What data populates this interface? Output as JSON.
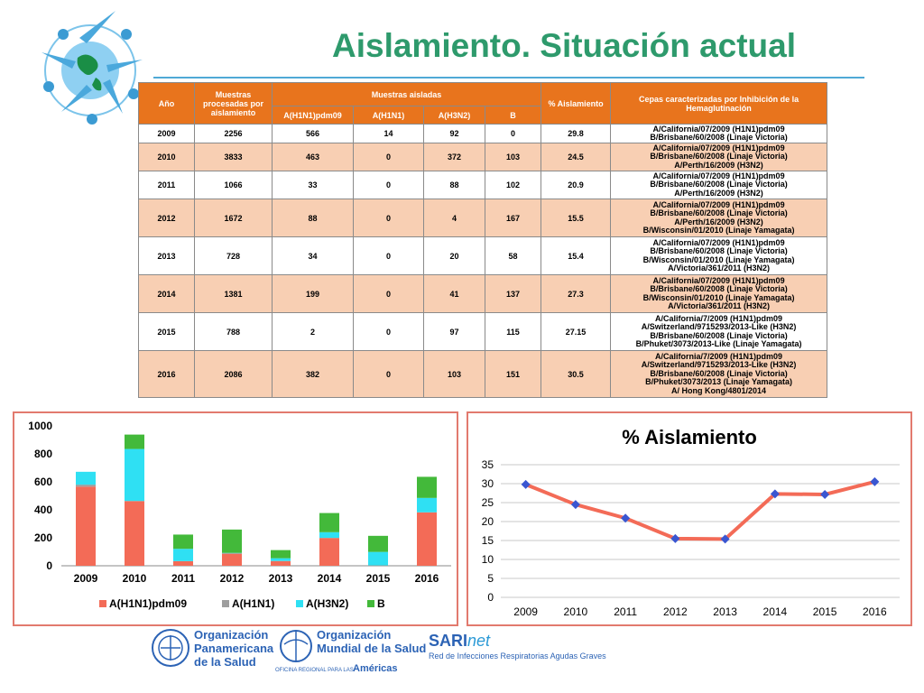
{
  "title": "Aislamiento. Situación actual",
  "colors": {
    "title": "#2e9a6c",
    "header": "#e8741d",
    "row_alt": "#f8cfb3",
    "series_h1n1pdm09": "#f36b57",
    "series_h1n1": "#9e9e9e",
    "series_h3n2": "#2fe0f3",
    "series_b": "#43b93a",
    "line": "#f36b57",
    "marker": "#3a56d1"
  },
  "table": {
    "headers": {
      "anio": "Año",
      "procesadas": "Muestras procesadas por aislamiento",
      "aisladas": "Muestras aisladas",
      "pct": "% Aislamiento",
      "cepas": "Cepas caracterizadas por Inhibición de la Hemaglutinación",
      "sub": [
        "A(H1N1)pdm09",
        "A(H1N1)",
        "A(H3N2)",
        "B"
      ]
    },
    "rows": [
      {
        "year": "2009",
        "processed": "2256",
        "h1n1pdm": "566",
        "h1n1": "14",
        "h3n2": "92",
        "b": "0",
        "pct": "29.8",
        "strains": [
          "A/California/07/2009 (H1N1)pdm09",
          "B/Brisbane/60/2008 (Linaje Victoria)"
        ]
      },
      {
        "year": "2010",
        "processed": "3833",
        "h1n1pdm": "463",
        "h1n1": "0",
        "h3n2": "372",
        "b": "103",
        "pct": "24.5",
        "strains": [
          "A/California/07/2009  (H1N1)pdm09",
          "B/Brisbane/60/2008  (Linaje Victoria)",
          "A/Perth/16/2009 (H3N2)"
        ]
      },
      {
        "year": "2011",
        "processed": "1066",
        "h1n1pdm": "33",
        "h1n1": "0",
        "h3n2": "88",
        "b": "102",
        "pct": "20.9",
        "strains": [
          "A/California/07/2009  (H1N1)pdm09",
          "B/Brisbane/60/2008  (Linaje Victoria)",
          "A/Perth/16/2009 (H3N2)"
        ]
      },
      {
        "year": "2012",
        "processed": "1672",
        "h1n1pdm": "88",
        "h1n1": "0",
        "h3n2": "4",
        "b": "167",
        "pct": "15.5",
        "strains": [
          "A/California/07/2009  (H1N1)pdm09",
          "B/Brisbane/60/2008  (Linaje Victoria)",
          "A/Perth/16/2009 (H3N2)",
          "B/Wisconsin/01/2010 (Linaje Yamagata)"
        ]
      },
      {
        "year": "2013",
        "processed": "728",
        "h1n1pdm": "34",
        "h1n1": "0",
        "h3n2": "20",
        "b": "58",
        "pct": "15.4",
        "strains": [
          "A/California/07/2009  (H1N1)pdm09",
          "B/Brisbane/60/2008  (Linaje Victoria)",
          "B/Wisconsin/01/2010 (Linaje Yamagata)",
          "A/Victoria/361/2011 (H3N2)"
        ]
      },
      {
        "year": "2014",
        "processed": "1381",
        "h1n1pdm": "199",
        "h1n1": "0",
        "h3n2": "41",
        "b": "137",
        "pct": "27.3",
        "strains": [
          "A/California/07/2009  (H1N1)pdm09",
          "B/Brisbane/60/2008  (Linaje Victoria)",
          "B/Wisconsin/01/2010 (Linaje Yamagata)",
          "A/Victoria/361/2011 (H3N2)"
        ]
      },
      {
        "year": "2015",
        "processed": "788",
        "h1n1pdm": "2",
        "h1n1": "0",
        "h3n2": "97",
        "b": "115",
        "pct": "27.15",
        "strains": [
          "A/California/7/2009 (H1N1)pdm09",
          "A/Switzerland/9715293/2013-Like (H3N2)",
          "B/Brisbane/60/2008 (Linaje Victoria)",
          "B/Phuket/3073/2013-Like (Linaje Yamagata)"
        ]
      },
      {
        "year": "2016",
        "processed": "2086",
        "h1n1pdm": "382",
        "h1n1": "0",
        "h3n2": "103",
        "b": "151",
        "pct": "30.5",
        "strains": [
          "A/California/7/2009 (H1N1)pdm09",
          "A/Switzerland/9715293/2013-Like (H3N2)",
          "B/Brisbane/60/2008 (Linaje Victoria)",
          "B/Phuket/3073/2013 (Linaje Yamagata)",
          "A/ Hong Kong/4801/2014"
        ]
      }
    ]
  },
  "chart_data": [
    {
      "type": "bar",
      "stacked": true,
      "title": "",
      "categories": [
        "2009",
        "2010",
        "2011",
        "2012",
        "2013",
        "2014",
        "2015",
        "2016"
      ],
      "series": [
        {
          "name": "A(H1N1)pdm09",
          "values": [
            566,
            463,
            33,
            88,
            34,
            199,
            2,
            382
          ]
        },
        {
          "name": "A(H1N1)",
          "values": [
            14,
            0,
            0,
            0,
            0,
            0,
            0,
            0
          ]
        },
        {
          "name": "A(H3N2)",
          "values": [
            92,
            372,
            88,
            4,
            20,
            41,
            97,
            103
          ]
        },
        {
          "name": "B",
          "values": [
            0,
            103,
            102,
            167,
            58,
            137,
            115,
            151
          ]
        }
      ],
      "yticks": [
        "0",
        "200",
        "400",
        "600",
        "800",
        "1000"
      ],
      "ylim": [
        0,
        1000
      ],
      "grid": false,
      "legend": "bottom"
    },
    {
      "type": "line",
      "title": "% Aislamiento",
      "categories": [
        "2009",
        "2010",
        "2011",
        "2012",
        "2013",
        "2014",
        "2015",
        "2016"
      ],
      "series": [
        {
          "values": [
            29.8,
            24.5,
            20.9,
            15.5,
            15.4,
            27.3,
            27.15,
            30.5
          ]
        }
      ],
      "yticks": [
        "0",
        "5",
        "10",
        "15",
        "20",
        "25",
        "30",
        "35"
      ],
      "ylim": [
        0,
        35
      ],
      "grid": true,
      "legend": "none"
    }
  ],
  "footer": {
    "ops_line1": "Organización",
    "ops_line2": "Panamericana",
    "ops_line3": "de la Salud",
    "oms_line1": "Organización",
    "oms_line2": "Mundial de la Salud",
    "oms_line3": "OFICINA REGIONAL PARA LAS",
    "oms_line4": "Américas",
    "sari_a": "SARI",
    "sari_b": "net",
    "sari_line2": "Red de Infecciones Respiratorias Agudas Graves"
  }
}
